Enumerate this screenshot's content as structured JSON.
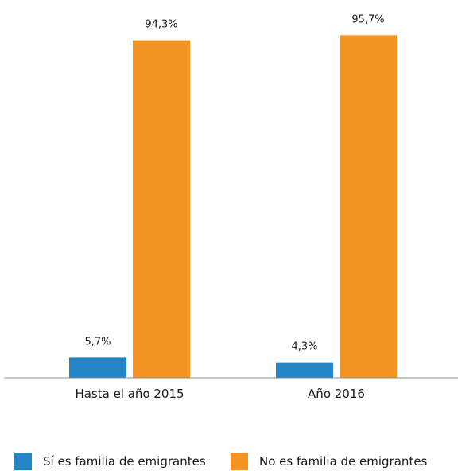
{
  "chart_data": {
    "type": "bar",
    "categories": [
      "Hasta el año 2015",
      "Año 2016"
    ],
    "series": [
      {
        "name": "Sí es familia de emigrantes",
        "color": "#2485C6",
        "values": [
          5.7,
          4.3
        ],
        "labels": [
          "5,7%",
          "4,3%"
        ]
      },
      {
        "name": "No es familia de emigrantes",
        "color": "#F39322",
        "values": [
          94.3,
          95.7
        ],
        "labels": [
          "94,3%",
          "95,7%"
        ]
      }
    ],
    "title": "",
    "xlabel": "",
    "ylabel": "",
    "ylim": [
      0,
      100
    ],
    "grid": false,
    "y_axis_visible": false,
    "legend_position": "bottom"
  }
}
